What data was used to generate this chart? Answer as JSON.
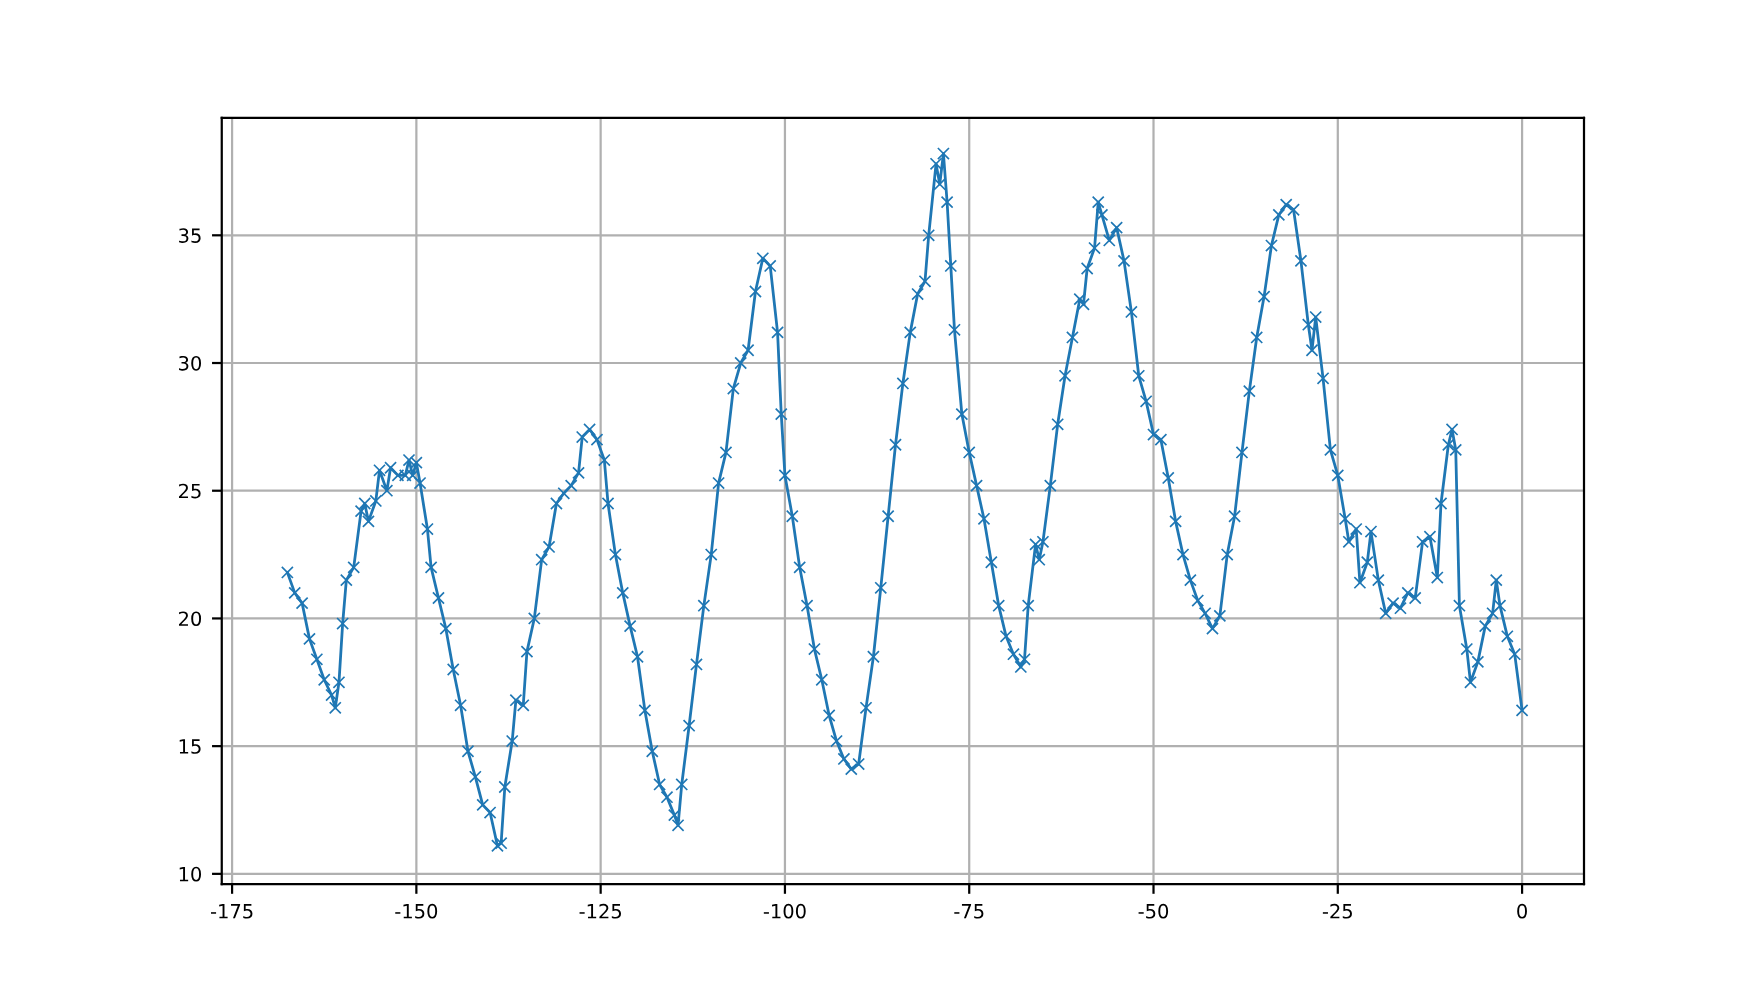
{
  "chart_data": {
    "type": "line",
    "color": "#1f77b4",
    "marker": "cross",
    "line_style": "solid",
    "grid": true,
    "xlim": [
      -176.4,
      8.4
    ],
    "ylim": [
      9.6,
      39.6
    ],
    "xticks": [
      -175,
      -150,
      -125,
      -100,
      -75,
      -50,
      -25,
      0
    ],
    "yticks": [
      10,
      15,
      20,
      25,
      30,
      35
    ],
    "x": [
      -167.5,
      -166.5,
      -165.5,
      -164.5,
      -163.5,
      -162.5,
      -161.5,
      -161,
      -160.5,
      -160,
      -159.5,
      -158.5,
      -157.5,
      -157,
      -156.5,
      -155.5,
      -155,
      -154,
      -153.5,
      -152.5,
      -151.5,
      -151,
      -150.5,
      -150,
      -149.5,
      -148.5,
      -148,
      -147,
      -146,
      -145,
      -144,
      -143,
      -142,
      -141,
      -140,
      -139,
      -138.5,
      -138,
      -137,
      -136.5,
      -135.5,
      -135,
      -134,
      -133,
      -132,
      -131,
      -130,
      -129,
      -128,
      -127.5,
      -126.5,
      -125.5,
      -124.5,
      -124,
      -123,
      -122,
      -121,
      -120,
      -119,
      -118,
      -117,
      -116,
      -115,
      -114.5,
      -114,
      -113,
      -112,
      -111,
      -110,
      -109,
      -108,
      -107,
      -106,
      -105,
      -104,
      -103,
      -102,
      -101,
      -100.5,
      -100,
      -99,
      -98,
      -97,
      -96,
      -95,
      -94,
      -93,
      -92,
      -91,
      -90,
      -89,
      -88,
      -87,
      -86,
      -85,
      -84,
      -83,
      -82,
      -81,
      -80.5,
      -79.5,
      -79,
      -78.5,
      -78,
      -77.5,
      -77,
      -76,
      -75,
      -74,
      -73,
      -72,
      -71,
      -70,
      -69,
      -68,
      -67.5,
      -67,
      -66,
      -65.5,
      -65,
      -64,
      -63,
      -62,
      -61,
      -60,
      -59.5,
      -59,
      -58,
      -57.5,
      -57,
      -56,
      -55,
      -54,
      -53,
      -52,
      -51,
      -50,
      -49,
      -48,
      -47,
      -46,
      -45,
      -44,
      -43,
      -42,
      -41,
      -40,
      -39,
      -38,
      -37,
      -36,
      -35,
      -34,
      -33,
      -32,
      -31,
      -30,
      -29,
      -28.5,
      -28,
      -27,
      -26,
      -25,
      -24,
      -23.5,
      -22.5,
      -22,
      -21,
      -20.5,
      -19.5,
      -18.5,
      -17.5,
      -16.5,
      -15.5,
      -14.5,
      -13.5,
      -12.5,
      -11.5,
      -11,
      -10,
      -9.5,
      -9,
      -8.5,
      -7.5,
      -7,
      -6,
      -5,
      -4,
      -3.5,
      -3,
      -2,
      -1,
      0
    ],
    "values": [
      21.8,
      21.0,
      20.6,
      19.2,
      18.4,
      17.6,
      17.0,
      16.5,
      17.5,
      19.8,
      21.5,
      22.0,
      24.2,
      24.5,
      23.8,
      24.6,
      25.8,
      25.0,
      25.9,
      25.6,
      25.6,
      26.2,
      25.6,
      26.1,
      25.3,
      23.5,
      22.0,
      20.8,
      19.6,
      18.0,
      16.6,
      14.8,
      13.8,
      12.7,
      12.4,
      11.1,
      11.2,
      13.4,
      15.2,
      16.8,
      16.6,
      18.7,
      20.0,
      22.3,
      22.8,
      24.5,
      24.9,
      25.2,
      25.7,
      27.1,
      27.4,
      27.0,
      26.2,
      24.5,
      22.5,
      21.0,
      19.7,
      18.5,
      16.4,
      14.8,
      13.5,
      13.0,
      12.3,
      11.9,
      13.5,
      15.8,
      18.2,
      20.5,
      22.5,
      25.3,
      26.5,
      29.0,
      30.0,
      30.5,
      32.8,
      34.1,
      33.8,
      31.2,
      28.0,
      25.6,
      24.0,
      22.0,
      20.5,
      18.8,
      17.6,
      16.2,
      15.2,
      14.5,
      14.1,
      14.3,
      16.5,
      18.5,
      21.2,
      24.0,
      26.8,
      29.2,
      31.2,
      32.7,
      33.2,
      35.0,
      37.8,
      37.0,
      38.2,
      36.3,
      33.8,
      31.3,
      28.0,
      26.5,
      25.2,
      23.9,
      22.2,
      20.5,
      19.3,
      18.6,
      18.1,
      18.4,
      20.5,
      22.9,
      22.3,
      23.0,
      25.2,
      27.6,
      29.5,
      31.0,
      32.5,
      32.3,
      33.7,
      34.5,
      36.3,
      35.8,
      34.8,
      35.3,
      34.0,
      32.0,
      29.5,
      28.5,
      27.2,
      27.0,
      25.5,
      23.8,
      22.5,
      21.5,
      20.7,
      20.2,
      19.6,
      20.1,
      22.5,
      24.0,
      26.5,
      28.9,
      31.0,
      32.6,
      34.6,
      35.8,
      36.2,
      36.0,
      34.0,
      31.5,
      30.5,
      31.8,
      29.4,
      26.6,
      25.6,
      23.9,
      23.0,
      23.5,
      21.4,
      22.2,
      23.4,
      21.5,
      20.2,
      20.6,
      20.4,
      21.0,
      20.8,
      23.0,
      23.2,
      21.6,
      24.5,
      26.8,
      27.4,
      26.6,
      20.5,
      18.8,
      17.5,
      18.3,
      19.7,
      20.2,
      21.5,
      20.5,
      19.3,
      18.6,
      16.4
    ]
  }
}
